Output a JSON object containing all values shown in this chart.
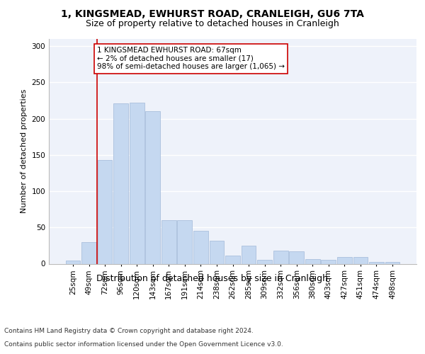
{
  "title": "1, KINGSMEAD, EWHURST ROAD, CRANLEIGH, GU6 7TA",
  "subtitle": "Size of property relative to detached houses in Cranleigh",
  "xlabel": "Distribution of detached houses by size in Cranleigh",
  "ylabel": "Number of detached properties",
  "categories": [
    "25sqm",
    "49sqm",
    "72sqm",
    "96sqm",
    "120sqm",
    "143sqm",
    "167sqm",
    "191sqm",
    "214sqm",
    "238sqm",
    "262sqm",
    "285sqm",
    "309sqm",
    "332sqm",
    "356sqm",
    "380sqm",
    "403sqm",
    "427sqm",
    "451sqm",
    "474sqm",
    "498sqm"
  ],
  "values": [
    4,
    30,
    143,
    221,
    222,
    210,
    60,
    60,
    45,
    32,
    11,
    25,
    5,
    18,
    17,
    6,
    5,
    9,
    9,
    2,
    2
  ],
  "bar_color": "#c5d8f0",
  "bar_edge_color": "#a0b8d8",
  "background_color": "#eef2fa",
  "grid_color": "#ffffff",
  "vline_color": "#cc0000",
  "ylim": [
    0,
    310
  ],
  "yticks": [
    0,
    50,
    100,
    150,
    200,
    250,
    300
  ],
  "annotation_text": "1 KINGSMEAD EWHURST ROAD: 67sqm\n← 2% of detached houses are smaller (17)\n98% of semi-detached houses are larger (1,065) →",
  "annotation_box_color": "#ffffff",
  "annotation_box_edge": "#cc0000",
  "footer1": "Contains HM Land Registry data © Crown copyright and database right 2024.",
  "footer2": "Contains public sector information licensed under the Open Government Licence v3.0.",
  "title_fontsize": 10,
  "subtitle_fontsize": 9,
  "xlabel_fontsize": 9,
  "ylabel_fontsize": 8,
  "tick_fontsize": 7.5,
  "annot_fontsize": 7.5,
  "footer_fontsize": 6.5,
  "vline_x_index": 1.5
}
